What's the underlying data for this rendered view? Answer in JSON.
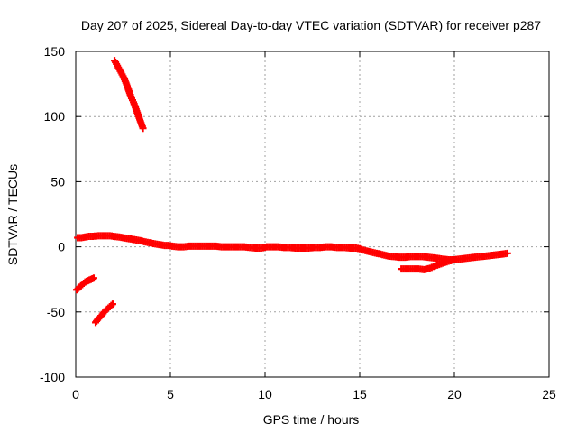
{
  "chart_data": {
    "type": "scatter",
    "title": "Day 207 of 2025, Sidereal Day-to-day VTEC variation (SDTVAR) for receiver p287",
    "xlabel": "GPS time / hours",
    "ylabel": "SDTVAR / TECUs",
    "xlim": [
      0,
      25
    ],
    "ylim": [
      -100,
      150
    ],
    "xticks": [
      0,
      5,
      10,
      15,
      20,
      25
    ],
    "yticks": [
      -100,
      -50,
      0,
      50,
      100,
      150
    ],
    "grid": true,
    "marker_color": "#ff0000",
    "marker": "plus",
    "series": [
      {
        "name": "p287",
        "segments": [
          [
            [
              2.05,
              143
            ],
            [
              2.2,
              139
            ],
            [
              2.35,
              135
            ],
            [
              2.5,
              131
            ],
            [
              2.65,
              126
            ],
            [
              2.75,
              122
            ],
            [
              2.85,
              118
            ],
            [
              2.95,
              114
            ],
            [
              3.05,
              111
            ],
            [
              3.15,
              107
            ],
            [
              3.25,
              103
            ],
            [
              3.35,
              99
            ],
            [
              3.45,
              95
            ],
            [
              3.55,
              91
            ]
          ],
          [
            [
              0.05,
              -33
            ],
            [
              0.2,
              -31
            ],
            [
              0.35,
              -29
            ],
            [
              0.5,
              -27
            ],
            [
              0.65,
              -26
            ],
            [
              0.8,
              -25
            ],
            [
              0.95,
              -24
            ]
          ],
          [
            [
              1.05,
              -58
            ],
            [
              1.2,
              -55
            ],
            [
              1.35,
              -53
            ],
            [
              1.5,
              -50
            ],
            [
              1.65,
              -48
            ],
            [
              1.8,
              -46
            ],
            [
              1.95,
              -44
            ]
          ],
          [
            [
              0.1,
              7
            ],
            [
              0.3,
              7
            ],
            [
              0.5,
              7.5
            ],
            [
              0.7,
              8
            ],
            [
              0.9,
              8
            ],
            [
              1.2,
              8.5
            ],
            [
              1.4,
              8.5
            ],
            [
              1.6,
              8.5
            ],
            [
              1.8,
              8.5
            ],
            [
              2.0,
              8
            ],
            [
              2.3,
              7.5
            ],
            [
              2.5,
              7
            ],
            [
              2.7,
              6.5
            ],
            [
              2.9,
              6
            ],
            [
              3.3,
              5
            ],
            [
              3.5,
              4.5
            ],
            [
              3.6,
              4
            ],
            [
              4.1,
              2.5
            ],
            [
              4.3,
              2
            ],
            [
              4.5,
              1.5
            ],
            [
              4.7,
              1
            ],
            [
              4.9,
              1
            ],
            [
              5.1,
              0.5
            ],
            [
              5.4,
              0
            ],
            [
              5.7,
              0
            ],
            [
              6.0,
              0.5
            ],
            [
              6.3,
              0.5
            ],
            [
              6.6,
              0.5
            ],
            [
              6.8,
              0.5
            ],
            [
              7.4,
              0.5
            ],
            [
              7.7,
              0
            ],
            [
              8.0,
              0
            ],
            [
              8.3,
              0
            ],
            [
              8.6,
              0
            ],
            [
              8.9,
              0
            ],
            [
              9.5,
              -1
            ],
            [
              9.8,
              -1
            ],
            [
              10.1,
              0
            ],
            [
              10.4,
              0
            ],
            [
              10.7,
              0
            ],
            [
              11.0,
              -0.5
            ],
            [
              11.3,
              -0.5
            ],
            [
              11.6,
              -1
            ],
            [
              11.9,
              -1
            ],
            [
              12.3,
              -1
            ],
            [
              12.6,
              -0.5
            ],
            [
              12.9,
              -0.5
            ],
            [
              13.2,
              0
            ],
            [
              13.5,
              0
            ],
            [
              13.8,
              -0.5
            ],
            [
              14.2,
              -0.5
            ],
            [
              14.5,
              -1
            ],
            [
              14.8,
              -1
            ],
            [
              15.0,
              -1.5
            ],
            [
              15.3,
              -3
            ],
            [
              15.6,
              -4
            ],
            [
              15.9,
              -5
            ],
            [
              16.2,
              -6
            ],
            [
              16.5,
              -7
            ],
            [
              16.8,
              -7.5
            ],
            [
              17.1,
              -8
            ],
            [
              17.4,
              -8
            ],
            [
              17.7,
              -7.5
            ],
            [
              18.0,
              -7.5
            ],
            [
              18.3,
              -7.5
            ],
            [
              18.6,
              -8
            ],
            [
              18.9,
              -8.5
            ],
            [
              19.2,
              -9
            ],
            [
              19.4,
              -9.5
            ],
            [
              19.7,
              -10
            ],
            [
              20.0,
              -10
            ],
            [
              20.2,
              -9.5
            ],
            [
              20.5,
              -9
            ],
            [
              20.8,
              -8.5
            ],
            [
              21.1,
              -8
            ],
            [
              21.4,
              -7.5
            ],
            [
              21.7,
              -7
            ],
            [
              22.0,
              -6.5
            ],
            [
              22.3,
              -6
            ],
            [
              22.6,
              -5.5
            ],
            [
              22.8,
              -5
            ]
          ],
          [
            [
              17.2,
              -17
            ],
            [
              17.5,
              -17
            ],
            [
              17.8,
              -17
            ],
            [
              18.1,
              -17
            ],
            [
              18.4,
              -17.5
            ],
            [
              18.7,
              -16.5
            ],
            [
              18.9,
              -15
            ],
            [
              19.1,
              -14
            ],
            [
              19.3,
              -13
            ],
            [
              19.5,
              -12
            ],
            [
              19.7,
              -11
            ],
            [
              20.0,
              -10
            ]
          ]
        ]
      }
    ]
  }
}
